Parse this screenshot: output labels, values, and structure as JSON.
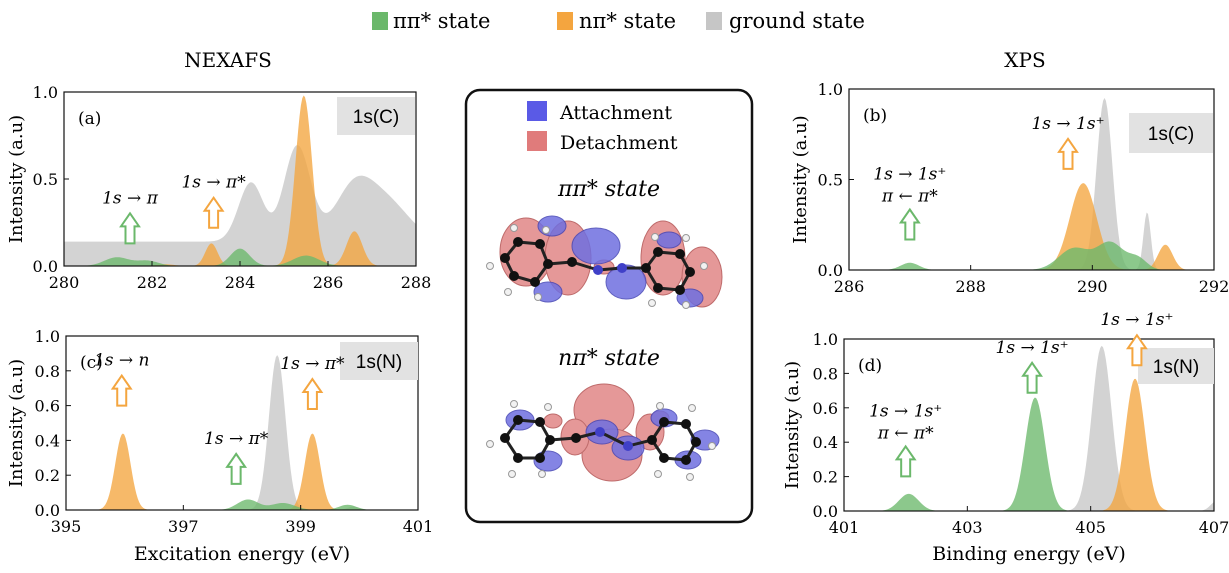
{
  "legend": {
    "items": [
      {
        "label": "ππ* state",
        "color": "#6bb86b"
      },
      {
        "label": "nπ* state",
        "color": "#f4a53f"
      },
      {
        "label": "ground state",
        "color": "#c6c6c6"
      }
    ]
  },
  "section_titles": {
    "left": "NEXAFS",
    "right": "XPS"
  },
  "center_box": {
    "legend": [
      {
        "label": "Attachment",
        "color": "#5a5ae6"
      },
      {
        "label": "Detachment",
        "color": "#e07b7b"
      }
    ],
    "pipi_title": "ππ* state",
    "npi_title": "nπ* state"
  },
  "chart_data": [
    {
      "id": "a",
      "type": "area",
      "panel_label": "(a)",
      "badge": "1s(C)",
      "ylabel": "Intensity (a.u)",
      "xlabel": "",
      "xlim": [
        280,
        288
      ],
      "ylim": [
        0,
        1.0
      ],
      "xticks": [
        "280",
        "282",
        "284",
        "286",
        "288"
      ],
      "yticks": [
        "0.0",
        "0.5",
        "1.0"
      ],
      "series": [
        {
          "name": "ground state",
          "color": "#c6c6c6",
          "baseline": 0.14,
          "peaks": [
            [
              284.25,
              0.34,
              0.28
            ],
            [
              285.3,
              0.55,
              0.3
            ],
            [
              286.6,
              0.31,
              0.45
            ],
            [
              287.4,
              0.2,
              0.5
            ]
          ]
        },
        {
          "name": "nπ* state",
          "color": "#f4a53f",
          "peaks": [
            [
              282.3,
              0.01,
              0.2
            ],
            [
              283.35,
              0.13,
              0.14
            ],
            [
              285.45,
              0.98,
              0.19
            ],
            [
              286.6,
              0.2,
              0.18
            ]
          ]
        },
        {
          "name": "ππ* state",
          "color": "#6bb86b",
          "peaks": [
            [
              281.2,
              0.05,
              0.28
            ],
            [
              281.9,
              0.03,
              0.25
            ],
            [
              284.0,
              0.1,
              0.22
            ],
            [
              285.5,
              0.06,
              0.3
            ]
          ]
        }
      ],
      "annotations": [
        {
          "text": "1s → π",
          "x": 281.5,
          "y": 0.36,
          "arrow_color": "#6bb86b",
          "arrow_y": 0.25
        },
        {
          "text": "1s → π*",
          "x": 283.4,
          "y": 0.45,
          "arrow_color": "#f4a53f",
          "arrow_y": 0.35
        }
      ]
    },
    {
      "id": "b",
      "type": "area",
      "panel_label": "(b)",
      "badge": "1s(C)",
      "ylabel": "Intensity (a.u)",
      "xlabel": "",
      "xlim": [
        286,
        292
      ],
      "ylim": [
        0,
        1.0
      ],
      "xticks": [
        "286",
        "288",
        "290",
        "292"
      ],
      "yticks": [
        "0.0",
        "0.5",
        "1.0"
      ],
      "series": [
        {
          "name": "ground state",
          "color": "#c6c6c6",
          "peaks": [
            [
              290.2,
              0.95,
              0.13
            ],
            [
              290.9,
              0.32,
              0.06
            ]
          ]
        },
        {
          "name": "nπ* state",
          "color": "#f4a53f",
          "peaks": [
            [
              289.85,
              0.48,
              0.22
            ],
            [
              291.2,
              0.14,
              0.12
            ]
          ]
        },
        {
          "name": "ππ* state",
          "color": "#6bb86b",
          "peaks": [
            [
              287.0,
              0.04,
              0.15
            ],
            [
              289.7,
              0.12,
              0.25
            ],
            [
              290.3,
              0.15,
              0.22
            ],
            [
              290.75,
              0.06,
              0.15
            ]
          ]
        }
      ],
      "annotations": [
        {
          "text": "1s → 1s⁺",
          "text2": "π ← π*",
          "x": 287.0,
          "y": 0.5,
          "arrow_color": "#6bb86b",
          "arrow_y": 0.25
        },
        {
          "text": "1s → 1s⁺",
          "x": 289.6,
          "y": 0.78,
          "arrow_color": "#f4a53f",
          "arrow_y": 0.67
        }
      ]
    },
    {
      "id": "c",
      "type": "area",
      "panel_label": "(c)",
      "badge": "1s(N)",
      "ylabel": "Intensity (a.u)",
      "xlabel": "Excitation energy (eV)",
      "xlim": [
        395,
        401
      ],
      "ylim": [
        0,
        1.0
      ],
      "xticks": [
        "395",
        "397",
        "399",
        "401"
      ],
      "yticks": [
        "0.0",
        "0.2",
        "0.4",
        "0.6",
        "0.8",
        "1.0"
      ],
      "series": [
        {
          "name": "ground state",
          "color": "#c6c6c6",
          "peaks": [
            [
              398.6,
              0.89,
              0.14
            ],
            [
              399.9,
              0.02,
              0.1
            ]
          ]
        },
        {
          "name": "nπ* state",
          "color": "#f4a53f",
          "peaks": [
            [
              395.97,
              0.44,
              0.13
            ],
            [
              399.2,
              0.44,
              0.13
            ]
          ]
        },
        {
          "name": "ππ* state",
          "color": "#6bb86b",
          "peaks": [
            [
              398.1,
              0.06,
              0.18
            ],
            [
              398.7,
              0.04,
              0.2
            ],
            [
              399.8,
              0.03,
              0.15
            ]
          ]
        }
      ],
      "annotations": [
        {
          "text": "1s → n",
          "x": 395.95,
          "y": 0.83,
          "arrow_color": "#f4a53f",
          "arrow_y": 0.62
        },
        {
          "text": "1s → π*",
          "x": 399.2,
          "y": 0.81,
          "arrow_color": "#f4a53f",
          "arrow_y": 0.62
        },
        {
          "text": "1s → π*",
          "x": 397.9,
          "y": 0.38,
          "arrow_color": "#6bb86b",
          "arrow_y": 0.16
        }
      ]
    },
    {
      "id": "d",
      "type": "area",
      "panel_label": "(d)",
      "badge": "1s(N)",
      "ylabel": "Intensity (a.u)",
      "xlabel": "Binding energy (eV)",
      "xlim": [
        401,
        407
      ],
      "ylim": [
        0,
        1.0
      ],
      "xticks": [
        "401",
        "403",
        "405",
        "407"
      ],
      "yticks": [
        "0.0",
        "0.2",
        "0.4",
        "0.6",
        "0.8",
        "1.0"
      ],
      "series": [
        {
          "name": "ground state",
          "color": "#c6c6c6",
          "peaks": [
            [
              405.18,
              0.96,
              0.16
            ],
            [
              407.05,
              0.06,
              0.1
            ]
          ]
        },
        {
          "name": "nπ* state",
          "color": "#f4a53f",
          "peaks": [
            [
              405.72,
              0.77,
              0.16
            ]
          ]
        },
        {
          "name": "ππ* state",
          "color": "#6bb86b",
          "peaks": [
            [
              402.05,
              0.1,
              0.16
            ],
            [
              404.1,
              0.66,
              0.16
            ]
          ]
        }
      ],
      "annotations": [
        {
          "text": "1s → 1s⁺",
          "text2": "π ← π*",
          "x": 402.0,
          "y": 0.55,
          "arrow_color": "#6bb86b",
          "arrow_y": 0.32
        },
        {
          "text": "1s → 1s⁺",
          "x": 404.05,
          "y": 0.92,
          "arrow_color": "#6bb86b",
          "arrow_y": 0.77
        },
        {
          "text": "1s → 1s⁺",
          "x": 405.75,
          "y": 1.08,
          "arrow_color": "#f4a53f",
          "arrow_y": 0.94
        }
      ]
    }
  ]
}
